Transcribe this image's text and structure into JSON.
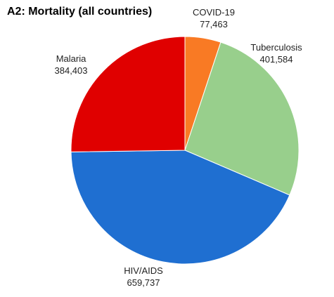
{
  "chart_data": {
    "type": "pie",
    "title": "A2: Mortality (all countries)",
    "slices": [
      {
        "label": "COVID-19",
        "value": 77463,
        "value_text": "77,463",
        "color": "#F97A24"
      },
      {
        "label": "Tuberculosis",
        "value": 401584,
        "value_text": "401,584",
        "color": "#98CF8C"
      },
      {
        "label": "HIV/AIDS",
        "value": 659737,
        "value_text": "659,737",
        "color": "#1F6FD1"
      },
      {
        "label": "Malaria",
        "value": 384403,
        "value_text": "384,403",
        "color": "#E00000"
      }
    ],
    "start": "12 o'clock",
    "direction": "clockwise",
    "legend": "none",
    "data_labels": "outside"
  }
}
